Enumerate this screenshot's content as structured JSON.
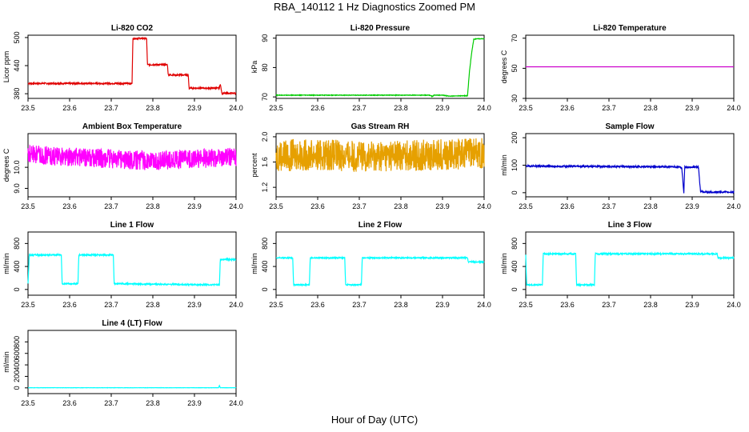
{
  "figure": {
    "title": "RBA_140112  1 Hz Diagnostics Zoomed PM",
    "xlabel": "Hour of Day (UTC)"
  },
  "chart_data": [
    {
      "type": "line",
      "title": "Li-820 CO2",
      "ylabel": "Licor ppm",
      "xlim": [
        23.5,
        24.0
      ],
      "ylim": [
        370,
        505
      ],
      "xticks": [
        "23.5",
        "23.6",
        "23.7",
        "23.8",
        "23.9",
        "24.0"
      ],
      "yticks": [
        "380",
        "440",
        "500"
      ],
      "series": [
        {
          "color": "#e00000",
          "noise": 1.5,
          "x": [
            23.5,
            23.75,
            23.752,
            23.785,
            23.787,
            23.835,
            23.837,
            23.885,
            23.887,
            23.96,
            23.962,
            23.966,
            23.968,
            24.0
          ],
          "y": [
            402,
            402,
            498,
            498,
            442,
            442,
            420,
            420,
            392,
            392,
            402,
            380,
            381,
            381
          ]
        }
      ]
    },
    {
      "type": "line",
      "title": "Li-820 Pressure",
      "ylabel": "kPa",
      "xlim": [
        23.5,
        24.0
      ],
      "ylim": [
        69.5,
        91
      ],
      "xticks": [
        "23.5",
        "23.6",
        "23.7",
        "23.8",
        "23.9",
        "24.0"
      ],
      "yticks": [
        "70",
        "80",
        "90"
      ],
      "series": [
        {
          "color": "#00cc00",
          "noise": 0.1,
          "x": [
            23.5,
            23.87,
            23.875,
            23.88,
            23.9,
            23.915,
            23.96,
            23.965,
            23.97,
            23.975,
            23.98,
            24.0
          ],
          "y": [
            70.6,
            70.6,
            70.2,
            70.6,
            70.6,
            70.3,
            70.4,
            79,
            85,
            89.5,
            89.8,
            89.8
          ]
        }
      ]
    },
    {
      "type": "line",
      "title": "Li-820 Temperature",
      "ylabel": "degrees C",
      "xlim": [
        23.5,
        24.0
      ],
      "ylim": [
        30,
        72
      ],
      "xticks": [
        "23.5",
        "23.6",
        "23.7",
        "23.8",
        "23.9",
        "24.0"
      ],
      "yticks": [
        "30",
        "50",
        "70"
      ],
      "series": [
        {
          "color": "#cc00cc",
          "noise": 0,
          "x": [
            23.5,
            24.0
          ],
          "y": [
            51,
            51
          ]
        }
      ]
    },
    {
      "type": "line",
      "title": "Ambient Box Temperature",
      "ylabel": "degrees C",
      "xlim": [
        23.5,
        24.0
      ],
      "ylim": [
        8.6,
        11.6
      ],
      "xticks": [
        "23.5",
        "23.6",
        "23.7",
        "23.8",
        "23.9",
        "24.0"
      ],
      "yticks": [
        "9.0",
        "10.0"
      ],
      "series": [
        {
          "color": "#ff00ff",
          "noise": 0.45,
          "x": [
            23.5,
            23.6,
            23.7,
            23.8,
            23.9,
            24.0
          ],
          "y": [
            10.6,
            10.5,
            10.4,
            10.3,
            10.4,
            10.5
          ]
        }
      ]
    },
    {
      "type": "line",
      "title": "Gas Stream RH",
      "ylabel": "percent",
      "xlim": [
        23.5,
        24.0
      ],
      "ylim": [
        1.05,
        2.05
      ],
      "xticks": [
        "23.5",
        "23.6",
        "23.7",
        "23.8",
        "23.9",
        "24.0"
      ],
      "yticks": [
        "1.2",
        "1.6",
        "2.0"
      ],
      "series": [
        {
          "color": "#e6a000",
          "noise": 0.25,
          "x": [
            23.5,
            23.6,
            23.7,
            23.8,
            23.9,
            24.0
          ],
          "y": [
            1.7,
            1.72,
            1.68,
            1.7,
            1.72,
            1.75
          ]
        }
      ]
    },
    {
      "type": "line",
      "title": "Sample Flow",
      "ylabel": "ml/min",
      "xlim": [
        23.5,
        24.0
      ],
      "ylim": [
        -15,
        215
      ],
      "xticks": [
        "23.5",
        "23.6",
        "23.7",
        "23.8",
        "23.9",
        "24.0"
      ],
      "yticks": [
        "0",
        "100",
        "200"
      ],
      "series": [
        {
          "color": "#0000cc",
          "noise": 3,
          "x": [
            23.5,
            23.87,
            23.875,
            23.88,
            23.882,
            23.915,
            23.92,
            23.93,
            24.0
          ],
          "y": [
            97,
            94,
            90,
            0,
            93,
            93,
            5,
            2,
            2
          ]
        }
      ]
    },
    {
      "type": "line",
      "title": "Line 1 Flow",
      "ylabel": "ml/min",
      "xlim": [
        23.5,
        24.0
      ],
      "ylim": [
        -100,
        1000
      ],
      "xticks": [
        "23.5",
        "23.6",
        "23.7",
        "23.8",
        "23.9",
        "24.0"
      ],
      "yticks": [
        "0",
        "400",
        "800"
      ],
      "series": [
        {
          "color": "#00ffff",
          "noise": 12,
          "x": [
            23.5,
            23.503,
            23.58,
            23.582,
            23.62,
            23.622,
            23.705,
            23.707,
            23.96,
            23.962,
            24.0
          ],
          "y": [
            100,
            600,
            600,
            100,
            100,
            600,
            600,
            100,
            80,
            520,
            520
          ]
        }
      ]
    },
    {
      "type": "line",
      "title": "Line 2 Flow",
      "ylabel": "ml/min",
      "xlim": [
        23.5,
        24.0
      ],
      "ylim": [
        -100,
        1000
      ],
      "xticks": [
        "23.5",
        "23.6",
        "23.7",
        "23.8",
        "23.9",
        "24.0"
      ],
      "yticks": [
        "0",
        "400",
        "800"
      ],
      "series": [
        {
          "color": "#00ffff",
          "noise": 10,
          "x": [
            23.5,
            23.54,
            23.542,
            23.58,
            23.582,
            23.665,
            23.667,
            23.705,
            23.707,
            23.96,
            23.962,
            24.0
          ],
          "y": [
            550,
            550,
            80,
            80,
            550,
            550,
            80,
            80,
            550,
            550,
            480,
            480
          ]
        }
      ]
    },
    {
      "type": "line",
      "title": "Line 3 Flow",
      "ylabel": "ml/min",
      "xlim": [
        23.5,
        24.0
      ],
      "ylim": [
        -100,
        1000
      ],
      "xticks": [
        "23.5",
        "23.6",
        "23.7",
        "23.8",
        "23.9",
        "24.0"
      ],
      "yticks": [
        "0",
        "400",
        "800"
      ],
      "series": [
        {
          "color": "#00ffff",
          "noise": 12,
          "x": [
            23.5,
            23.502,
            23.54,
            23.542,
            23.62,
            23.622,
            23.665,
            23.667,
            23.96,
            23.962,
            24.0
          ],
          "y": [
            600,
            80,
            80,
            620,
            620,
            80,
            80,
            620,
            620,
            550,
            550
          ]
        }
      ]
    },
    {
      "type": "line",
      "title": "Line 4 (LT) Flow",
      "ylabel": "ml/min",
      "xlim": [
        23.5,
        24.0
      ],
      "ylim": [
        -100,
        1000
      ],
      "xticks": [
        "23.5",
        "23.6",
        "23.7",
        "23.8",
        "23.9",
        "24.0"
      ],
      "yticks": [
        "0",
        "200",
        "400",
        "600",
        "800"
      ],
      "series": [
        {
          "color": "#00ffff",
          "noise": 2,
          "x": [
            23.5,
            23.958,
            23.96,
            23.962,
            24.0
          ],
          "y": [
            2,
            2,
            40,
            2,
            2
          ]
        }
      ]
    }
  ]
}
